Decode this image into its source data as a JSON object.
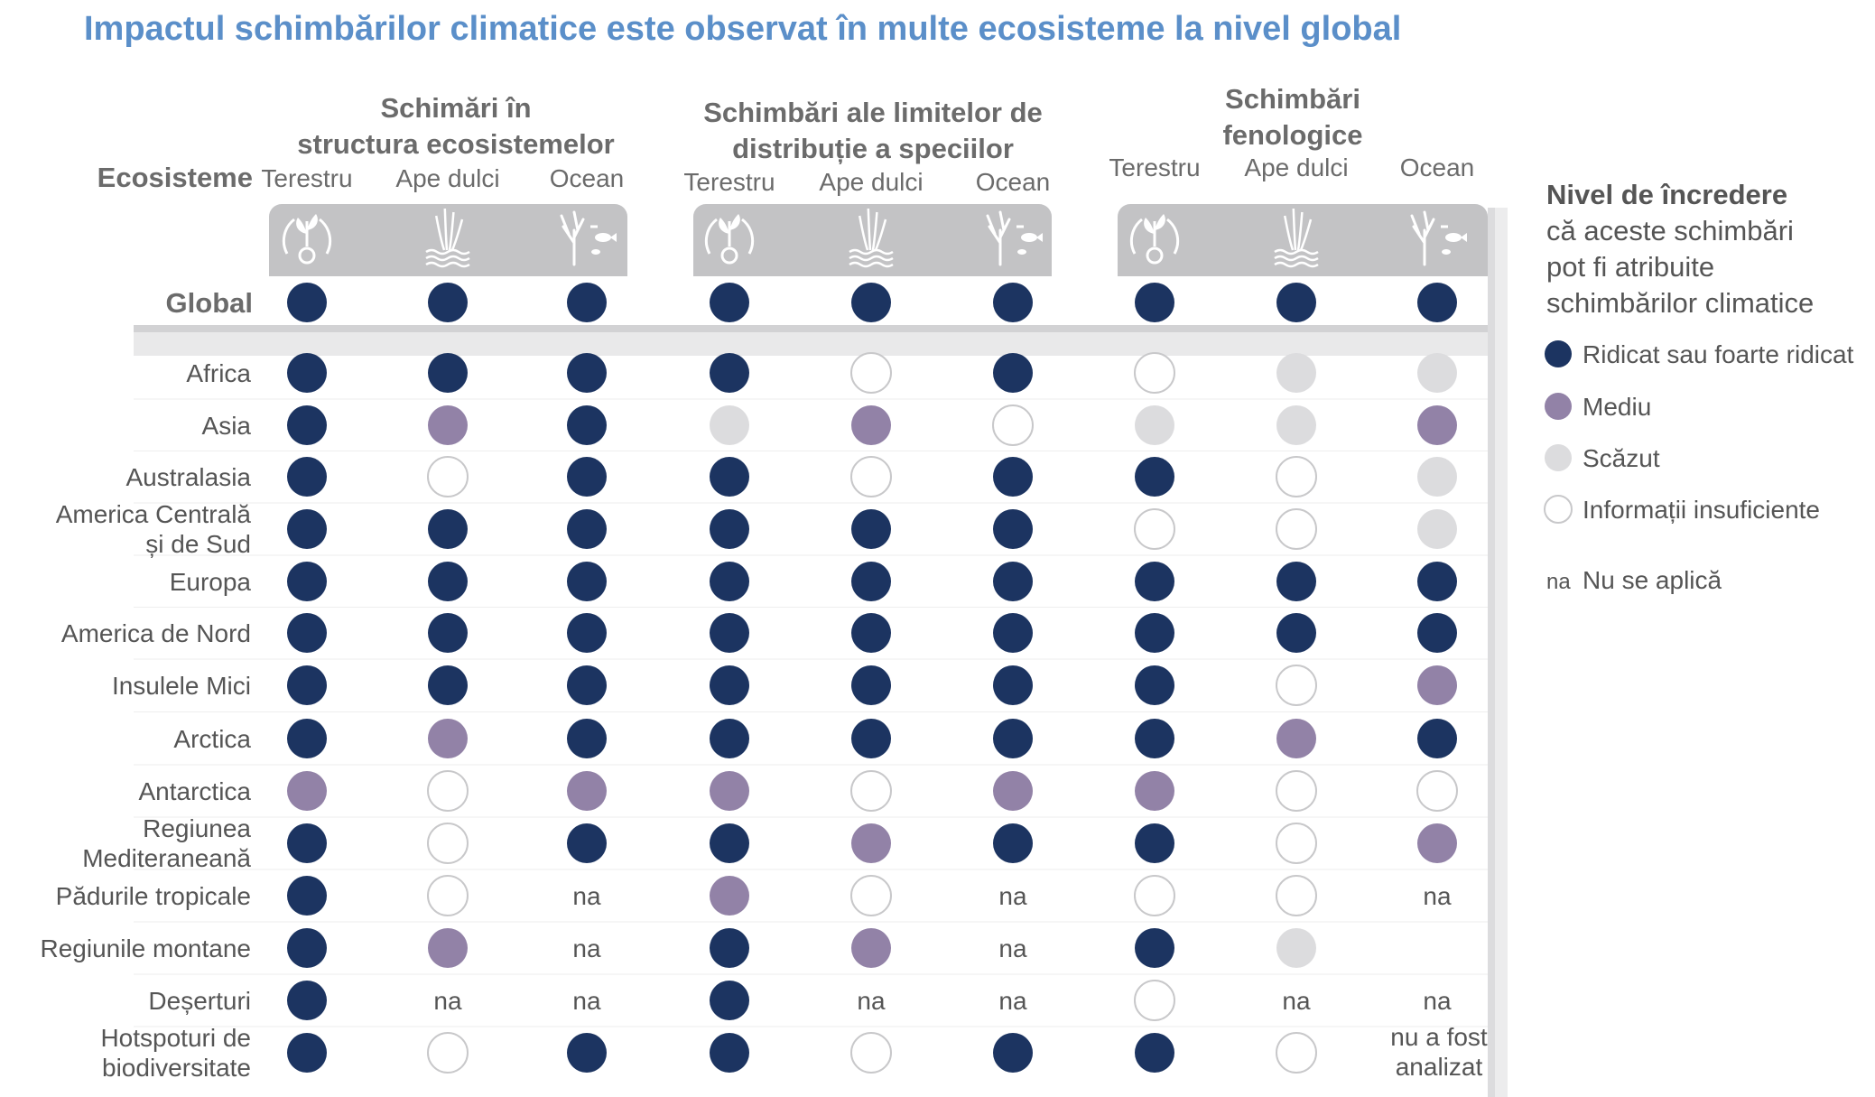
{
  "colors": {
    "high": "#1c3461",
    "medium": "#9282a7",
    "low": "#dcdcde",
    "insufficient": "#ffffff",
    "title": "#5b8fc9",
    "header_text": "#6b6b6b",
    "text": "#555555",
    "panel": "#c3c3c5"
  },
  "chart_data": {
    "type": "table",
    "title": "Impactul schimbărilor climatice este observat în multe ecosisteme la nivel global",
    "row_header": "Ecosisteme",
    "groups": [
      {
        "name": [
          "Schimări în",
          "structura ecosistemelor"
        ],
        "columns": [
          "Terestru",
          "Ape dulci",
          "Ocean"
        ]
      },
      {
        "name": [
          "Schimbări ale limitelor de",
          "distribuție a speciilor"
        ],
        "columns": [
          "Terestru",
          "Ape dulci",
          "Ocean"
        ]
      },
      {
        "name": [
          "Schimbări",
          "fenologice"
        ],
        "columns": [
          "Terestru",
          "Ape dulci",
          "Ocean"
        ]
      }
    ],
    "column_icons": [
      "plant-cycle-icon",
      "freshwater-reeds-icon",
      "ocean-coral-fish-icon"
    ],
    "global_row": {
      "label": "Global",
      "values": [
        "high",
        "high",
        "high",
        "high",
        "high",
        "high",
        "high",
        "high",
        "high"
      ]
    },
    "rows": [
      {
        "label": [
          "Africa"
        ],
        "values": [
          "high",
          "high",
          "high",
          "high",
          "insufficient",
          "high",
          "insufficient",
          "low",
          "low"
        ]
      },
      {
        "label": [
          "Asia"
        ],
        "values": [
          "high",
          "medium",
          "high",
          "low",
          "medium",
          "insufficient",
          "low",
          "low",
          "medium"
        ]
      },
      {
        "label": [
          "Australasia"
        ],
        "values": [
          "high",
          "insufficient",
          "high",
          "high",
          "insufficient",
          "high",
          "high",
          "insufficient",
          "low"
        ]
      },
      {
        "label": [
          "America Centrală",
          "și de Sud"
        ],
        "values": [
          "high",
          "high",
          "high",
          "high",
          "high",
          "high",
          "insufficient",
          "insufficient",
          "low"
        ]
      },
      {
        "label": [
          "Europa"
        ],
        "values": [
          "high",
          "high",
          "high",
          "high",
          "high",
          "high",
          "high",
          "high",
          "high"
        ]
      },
      {
        "label": [
          "America de Nord"
        ],
        "values": [
          "high",
          "high",
          "high",
          "high",
          "high",
          "high",
          "high",
          "high",
          "high"
        ]
      },
      {
        "label": [
          "Insulele Mici"
        ],
        "values": [
          "high",
          "high",
          "high",
          "high",
          "high",
          "high",
          "high",
          "insufficient",
          "medium"
        ]
      },
      {
        "label": [
          "Arctica"
        ],
        "values": [
          "high",
          "medium",
          "high",
          "high",
          "high",
          "high",
          "high",
          "medium",
          "high"
        ]
      },
      {
        "label": [
          "Antarctica"
        ],
        "values": [
          "medium",
          "insufficient",
          "medium",
          "medium",
          "insufficient",
          "medium",
          "medium",
          "insufficient",
          "insufficient"
        ]
      },
      {
        "label": [
          "Regiunea",
          "Mediteraneană"
        ],
        "values": [
          "high",
          "insufficient",
          "high",
          "high",
          "medium",
          "high",
          "high",
          "insufficient",
          "medium"
        ]
      },
      {
        "label": [
          "Pădurile tropicale"
        ],
        "values": [
          "high",
          "insufficient",
          "na",
          "medium",
          "insufficient",
          "na",
          "insufficient",
          "insufficient",
          "na"
        ]
      },
      {
        "label": [
          "Regiunile montane"
        ],
        "values": [
          "high",
          "medium",
          "na",
          "high",
          "medium",
          "na",
          "high",
          "low",
          ""
        ]
      },
      {
        "label": [
          "Deșerturi"
        ],
        "values": [
          "high",
          "na",
          "na",
          "high",
          "na",
          "na",
          "insufficient",
          "na",
          "na"
        ]
      },
      {
        "label": [
          "Hotspoturi de",
          "biodiversitate"
        ],
        "values": [
          "high",
          "insufficient",
          "high",
          "high",
          "insufficient",
          "high",
          "high",
          "insufficient",
          "nu a fost analizat"
        ]
      }
    ],
    "legend": {
      "title": [
        "Nivel de încredere",
        "că aceste schimbări",
        "pot fi atribuite",
        "schimbărilor climatice"
      ],
      "items": [
        {
          "key": "high",
          "label": "Ridicat sau foarte ridicat"
        },
        {
          "key": "medium",
          "label": "Mediu"
        },
        {
          "key": "low",
          "label": "Scăzut"
        },
        {
          "key": "insufficient",
          "label": "Informații insuficiente"
        }
      ],
      "na": {
        "symbol": "na",
        "label": "Nu se aplică"
      }
    },
    "na_text": "na",
    "not_analyzed_text": [
      "nu a fost",
      "analizat"
    ]
  }
}
